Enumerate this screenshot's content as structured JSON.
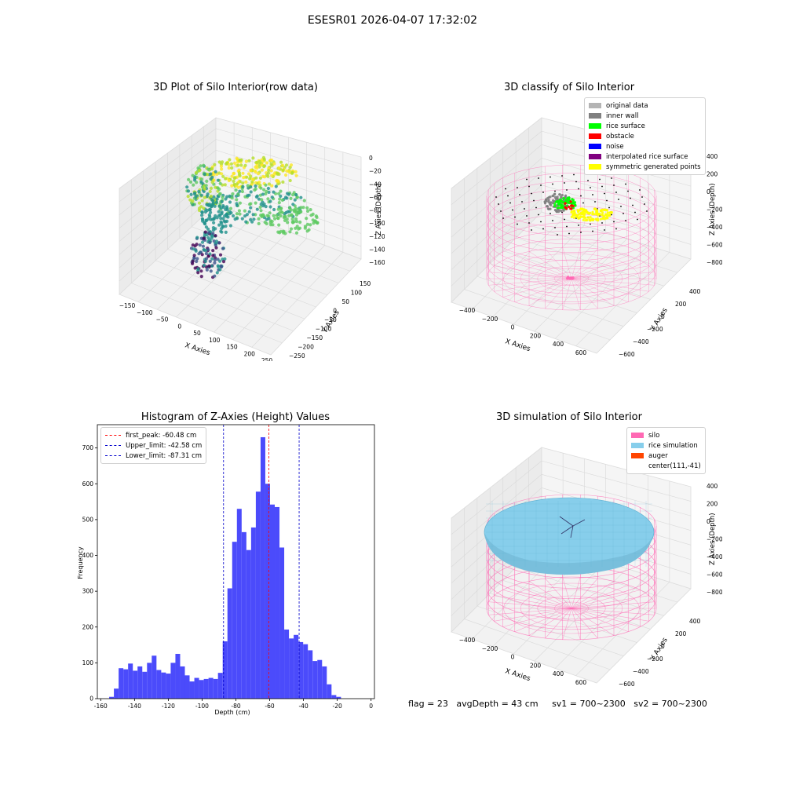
{
  "suptitle": "ESESR01 2026-04-07 17:32:02",
  "status": {
    "flag": "flag = 23",
    "avg_depth": "avgDepth = 43 cm",
    "sv1": "sv1 = 700~2300",
    "sv2": "sv2 = 700~2300"
  },
  "colors": {
    "hist_bar": "#4b4bfb",
    "first_peak": "#ff0000",
    "limits": "#0000cc",
    "silo": "#ff69b4",
    "rice_sim": "#87ceeb",
    "auger": "#ff4500"
  },
  "chart_data": [
    {
      "type": "scatter",
      "title": "3D Plot of Silo Interior(row data)",
      "xlabel": "X Axies",
      "ylabel": "Y Axies",
      "zlabel": "Z Axies (Depth)",
      "x_ticks": [
        "−150",
        "−100",
        "−50",
        "0",
        "50",
        "100",
        "150",
        "200",
        "250"
      ],
      "y_ticks": [
        "150",
        "100",
        "50",
        "0",
        "−50",
        "−100",
        "−150",
        "−200",
        "−250"
      ],
      "z_ticks": [
        "0",
        "−20",
        "−40",
        "−60",
        "−80",
        "−100",
        "−120",
        "−140",
        "−160"
      ],
      "colormap": "viridis"
    },
    {
      "type": "scatter",
      "title": "3D classify of Silo Interior",
      "xlabel": "X Axies",
      "ylabel": "Y Axies",
      "zlabel": "Z Axies (Depth)",
      "x_ticks": [
        "−400",
        "−200",
        "0",
        "200",
        "400",
        "600"
      ],
      "y_ticks": [
        "400",
        "200",
        "0",
        "−200",
        "−400",
        "−600"
      ],
      "z_ticks": [
        "400",
        "200",
        "0",
        "−200",
        "−400",
        "−600",
        "−800"
      ],
      "legend_position": "top-right",
      "legend": [
        {
          "label": "original data",
          "color": "#b4b4b4"
        },
        {
          "label": "inner wall",
          "color": "#808080"
        },
        {
          "label": "rice surface",
          "color": "#00ff00"
        },
        {
          "label": "obstacle",
          "color": "#ff0000"
        },
        {
          "label": "noise",
          "color": "#0000ff"
        },
        {
          "label": "interpolated rice surface",
          "color": "#800080"
        },
        {
          "label": "symmetric generated points",
          "color": "#ffff00"
        }
      ]
    },
    {
      "type": "bar",
      "title": "Histogram of Z-Axies (Height) Values",
      "xlabel": "Depth (cm)",
      "ylabel": "Frequency",
      "xlim": [
        -162,
        2
      ],
      "ylim": [
        0,
        765
      ],
      "x_ticks": [
        -160,
        -140,
        -120,
        -100,
        -80,
        -60,
        -40,
        -20,
        0
      ],
      "y_ticks": [
        0,
        100,
        200,
        300,
        400,
        500,
        600,
        700
      ],
      "bin_start": -155,
      "bin_width": 2.8,
      "values": [
        5,
        28,
        85,
        82,
        98,
        78,
        90,
        75,
        100,
        120,
        80,
        73,
        70,
        100,
        125,
        90,
        65,
        48,
        58,
        52,
        55,
        58,
        55,
        72,
        160,
        308,
        438,
        530,
        465,
        415,
        478,
        578,
        730,
        600,
        542,
        535,
        422,
        193,
        168,
        178,
        158,
        152,
        135,
        105,
        108,
        90,
        40,
        10,
        5
      ],
      "legend_position": "top-left",
      "lines": [
        {
          "label": "first_peak: -60.48 cm",
          "x": -60.48,
          "color": "#ff0000"
        },
        {
          "label": "Upper_limit: -42.58 cm",
          "x": -42.58,
          "color": "#0000cc"
        },
        {
          "label": "Lower_limit: -87.31 cm",
          "x": -87.31,
          "color": "#0000cc"
        }
      ]
    },
    {
      "type": "area",
      "title": "3D simulation of Silo Interior",
      "xlabel": "X Axies",
      "ylabel": "Y Axies",
      "zlabel": "Z Axies (Depth)",
      "x_ticks": [
        "−400",
        "−200",
        "0",
        "200",
        "400",
        "600"
      ],
      "y_ticks": [
        "400",
        "200",
        "0",
        "−200",
        "−400",
        "−600"
      ],
      "z_ticks": [
        "400",
        "200",
        "0",
        "−200",
        "−400",
        "−600",
        "−800"
      ],
      "legend_position": "top-right",
      "legend": [
        {
          "label": "silo",
          "color": "#ff69b4"
        },
        {
          "label": "rice simulation",
          "color": "#87ceeb"
        },
        {
          "label": "auger",
          "color": "#ff4500"
        },
        {
          "label": "center(111,-41)",
          "color": ""
        }
      ]
    }
  ]
}
